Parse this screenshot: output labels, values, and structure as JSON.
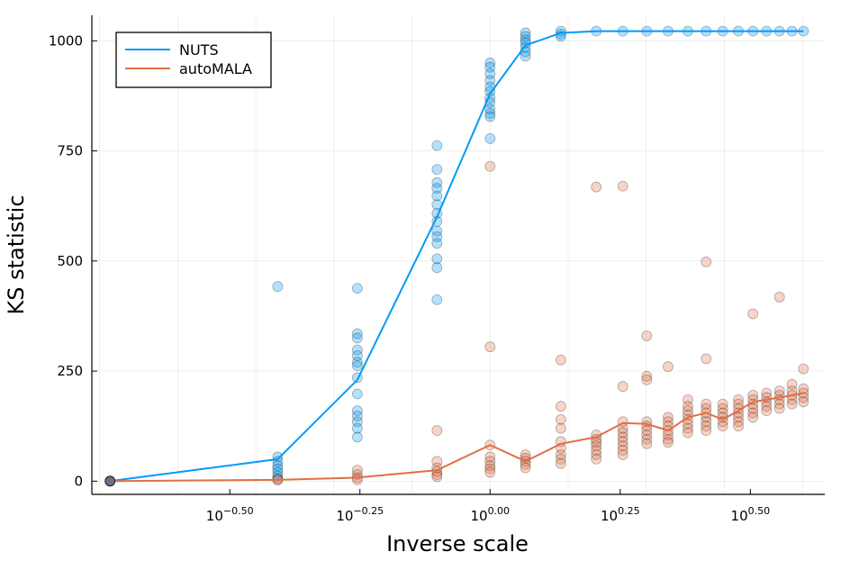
{
  "chart_data": {
    "type": "scatter",
    "title": "",
    "xlabel": "Inverse scale",
    "ylabel": "KS statistic",
    "xscale": "log10",
    "xlim_log10": [
      -0.765,
      0.643
    ],
    "ylim": [
      -30,
      1058
    ],
    "grid": true,
    "legend_position": "top-left",
    "x_ticks": [
      {
        "log10": -0.5,
        "base": "10",
        "exp": "−0.50"
      },
      {
        "log10": -0.25,
        "base": "10",
        "exp": "−0.25"
      },
      {
        "log10": 0.0,
        "base": "10",
        "exp": "0.00"
      },
      {
        "log10": 0.25,
        "base": "10",
        "exp": "0.25"
      },
      {
        "log10": 0.5,
        "base": "10",
        "exp": "0.50"
      }
    ],
    "y_ticks": [
      0,
      250,
      500,
      750,
      1000
    ],
    "y_tick_labels": [
      "0",
      "250",
      "500",
      "750",
      "1000"
    ],
    "x_grid_log10": [
      -0.75,
      -0.6,
      -0.45,
      -0.3,
      -0.15,
      0.0,
      0.15,
      0.3,
      0.45,
      0.6
    ],
    "series": [
      {
        "name": "NUTS",
        "color": "#009AFA",
        "line_log10x": [
          -0.73,
          -0.408,
          -0.255,
          -0.102,
          0.0,
          0.068,
          0.136,
          0.204,
          0.255,
          0.301,
          0.342,
          0.38,
          0.415,
          0.447,
          0.477,
          0.505,
          0.531,
          0.556,
          0.58,
          0.602
        ],
        "line_y": [
          0,
          50,
          230,
          600,
          880,
          990,
          1018,
          1022,
          1022,
          1022,
          1022,
          1022,
          1022,
          1022,
          1022,
          1022,
          1022,
          1022,
          1022,
          1022
        ],
        "points": [
          [
            -0.408,
            442
          ],
          [
            -0.408,
            55
          ],
          [
            -0.408,
            45
          ],
          [
            -0.408,
            35
          ],
          [
            -0.408,
            28
          ],
          [
            -0.408,
            20
          ],
          [
            -0.408,
            12
          ],
          [
            -0.408,
            5
          ],
          [
            -0.255,
            438
          ],
          [
            -0.255,
            335
          ],
          [
            -0.255,
            325
          ],
          [
            -0.255,
            298
          ],
          [
            -0.255,
            285
          ],
          [
            -0.255,
            270
          ],
          [
            -0.255,
            262
          ],
          [
            -0.255,
            235
          ],
          [
            -0.255,
            198
          ],
          [
            -0.255,
            160
          ],
          [
            -0.255,
            148
          ],
          [
            -0.255,
            135
          ],
          [
            -0.255,
            120
          ],
          [
            -0.255,
            100
          ],
          [
            -0.102,
            762
          ],
          [
            -0.102,
            708
          ],
          [
            -0.102,
            678
          ],
          [
            -0.102,
            665
          ],
          [
            -0.102,
            648
          ],
          [
            -0.102,
            628
          ],
          [
            -0.102,
            608
          ],
          [
            -0.102,
            590
          ],
          [
            -0.102,
            568
          ],
          [
            -0.102,
            555
          ],
          [
            -0.102,
            540
          ],
          [
            -0.102,
            505
          ],
          [
            -0.102,
            485
          ],
          [
            -0.102,
            412
          ],
          [
            0.0,
            950
          ],
          [
            0.0,
            940
          ],
          [
            0.0,
            925
          ],
          [
            0.0,
            910
          ],
          [
            0.0,
            895
          ],
          [
            0.0,
            885
          ],
          [
            0.0,
            870
          ],
          [
            0.0,
            860
          ],
          [
            0.0,
            845
          ],
          [
            0.0,
            835
          ],
          [
            0.0,
            828
          ],
          [
            0.0,
            778
          ],
          [
            0.068,
            1018
          ],
          [
            0.068,
            1010
          ],
          [
            0.068,
            1002
          ],
          [
            0.068,
            995
          ],
          [
            0.068,
            985
          ],
          [
            0.068,
            975
          ],
          [
            0.068,
            965
          ],
          [
            0.136,
            1022
          ],
          [
            0.136,
            1015
          ],
          [
            0.136,
            1010
          ],
          [
            0.204,
            1022
          ],
          [
            0.255,
            1022
          ],
          [
            0.301,
            1022
          ],
          [
            0.342,
            1022
          ],
          [
            0.38,
            1022
          ],
          [
            0.415,
            1022
          ],
          [
            0.447,
            1022
          ],
          [
            0.477,
            1022
          ],
          [
            0.505,
            1022
          ],
          [
            0.531,
            1022
          ],
          [
            0.556,
            1022
          ],
          [
            0.58,
            1022
          ],
          [
            0.602,
            1022
          ]
        ]
      },
      {
        "name": "autoMALA",
        "color": "#E26F46",
        "line_log10x": [
          -0.73,
          -0.408,
          -0.255,
          -0.102,
          0.0,
          0.068,
          0.136,
          0.204,
          0.255,
          0.301,
          0.342,
          0.38,
          0.415,
          0.447,
          0.477,
          0.505,
          0.531,
          0.556,
          0.58,
          0.602
        ],
        "line_y": [
          0,
          3,
          8,
          25,
          82,
          45,
          85,
          100,
          132,
          130,
          115,
          145,
          155,
          140,
          160,
          180,
          185,
          190,
          195,
          200
        ],
        "points": [
          [
            -0.408,
            5
          ],
          [
            -0.408,
            2
          ],
          [
            -0.255,
            25
          ],
          [
            -0.255,
            15
          ],
          [
            -0.255,
            8
          ],
          [
            -0.255,
            3
          ],
          [
            -0.102,
            115
          ],
          [
            -0.102,
            45
          ],
          [
            -0.102,
            30
          ],
          [
            -0.102,
            22
          ],
          [
            -0.102,
            15
          ],
          [
            -0.102,
            10
          ],
          [
            0.0,
            715
          ],
          [
            0.0,
            305
          ],
          [
            0.0,
            82
          ],
          [
            0.0,
            55
          ],
          [
            0.0,
            45
          ],
          [
            0.0,
            35
          ],
          [
            0.0,
            28
          ],
          [
            0.0,
            20
          ],
          [
            0.068,
            60
          ],
          [
            0.068,
            52
          ],
          [
            0.068,
            45
          ],
          [
            0.068,
            38
          ],
          [
            0.068,
            30
          ],
          [
            0.136,
            275
          ],
          [
            0.136,
            170
          ],
          [
            0.136,
            140
          ],
          [
            0.136,
            120
          ],
          [
            0.136,
            90
          ],
          [
            0.136,
            75
          ],
          [
            0.136,
            60
          ],
          [
            0.136,
            50
          ],
          [
            0.136,
            40
          ],
          [
            0.204,
            668
          ],
          [
            0.204,
            105
          ],
          [
            0.204,
            95
          ],
          [
            0.204,
            88
          ],
          [
            0.204,
            80
          ],
          [
            0.204,
            70
          ],
          [
            0.204,
            60
          ],
          [
            0.204,
            50
          ],
          [
            0.255,
            670
          ],
          [
            0.255,
            215
          ],
          [
            0.255,
            135
          ],
          [
            0.255,
            120
          ],
          [
            0.255,
            110
          ],
          [
            0.255,
            100
          ],
          [
            0.255,
            90
          ],
          [
            0.255,
            80
          ],
          [
            0.255,
            70
          ],
          [
            0.255,
            60
          ],
          [
            0.301,
            330
          ],
          [
            0.301,
            238
          ],
          [
            0.301,
            230
          ],
          [
            0.301,
            135
          ],
          [
            0.301,
            125
          ],
          [
            0.301,
            115
          ],
          [
            0.301,
            105
          ],
          [
            0.301,
            95
          ],
          [
            0.301,
            85
          ],
          [
            0.342,
            260
          ],
          [
            0.342,
            145
          ],
          [
            0.342,
            135
          ],
          [
            0.342,
            125
          ],
          [
            0.342,
            115
          ],
          [
            0.342,
            105
          ],
          [
            0.342,
            95
          ],
          [
            0.342,
            88
          ],
          [
            0.38,
            185
          ],
          [
            0.38,
            170
          ],
          [
            0.38,
            160
          ],
          [
            0.38,
            150
          ],
          [
            0.38,
            140
          ],
          [
            0.38,
            130
          ],
          [
            0.38,
            120
          ],
          [
            0.38,
            110
          ],
          [
            0.415,
            498
          ],
          [
            0.415,
            278
          ],
          [
            0.415,
            175
          ],
          [
            0.415,
            165
          ],
          [
            0.415,
            155
          ],
          [
            0.415,
            145
          ],
          [
            0.415,
            135
          ],
          [
            0.415,
            125
          ],
          [
            0.415,
            115
          ],
          [
            0.447,
            175
          ],
          [
            0.447,
            165
          ],
          [
            0.447,
            155
          ],
          [
            0.447,
            145
          ],
          [
            0.447,
            135
          ],
          [
            0.447,
            125
          ],
          [
            0.477,
            185
          ],
          [
            0.477,
            175
          ],
          [
            0.477,
            165
          ],
          [
            0.477,
            155
          ],
          [
            0.477,
            145
          ],
          [
            0.477,
            135
          ],
          [
            0.477,
            125
          ],
          [
            0.505,
            380
          ],
          [
            0.505,
            195
          ],
          [
            0.505,
            185
          ],
          [
            0.505,
            175
          ],
          [
            0.505,
            165
          ],
          [
            0.505,
            155
          ],
          [
            0.505,
            145
          ],
          [
            0.531,
            200
          ],
          [
            0.531,
            190
          ],
          [
            0.531,
            180
          ],
          [
            0.531,
            170
          ],
          [
            0.531,
            160
          ],
          [
            0.556,
            418
          ],
          [
            0.556,
            205
          ],
          [
            0.556,
            195
          ],
          [
            0.556,
            185
          ],
          [
            0.556,
            175
          ],
          [
            0.556,
            165
          ],
          [
            0.58,
            220
          ],
          [
            0.58,
            205
          ],
          [
            0.58,
            195
          ],
          [
            0.58,
            185
          ],
          [
            0.58,
            175
          ],
          [
            0.602,
            255
          ],
          [
            0.602,
            210
          ],
          [
            0.602,
            200
          ],
          [
            0.602,
            190
          ],
          [
            0.602,
            180
          ]
        ]
      }
    ],
    "overlap_point": {
      "log10x": -0.73,
      "y": 0,
      "color": "#6E6E80"
    }
  }
}
